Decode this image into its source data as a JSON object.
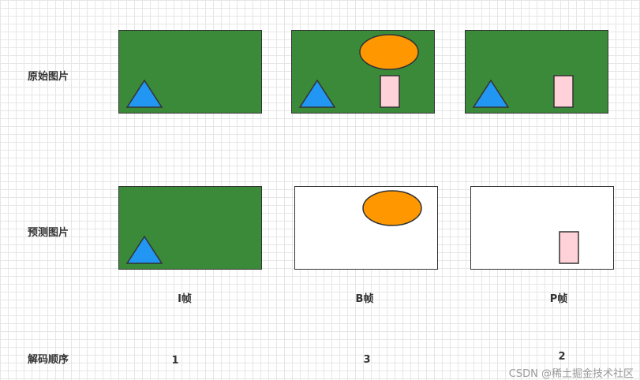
{
  "rows": {
    "original": "原始图片",
    "predicted": "预测图片",
    "decode_order": "解码顺序"
  },
  "frames": {
    "i": {
      "label": "I帧",
      "order": "1"
    },
    "b": {
      "label": "B帧",
      "order": "3"
    },
    "p": {
      "label": "P帧",
      "order": "2"
    }
  },
  "colors": {
    "background_green": "#3a8a3a",
    "triangle_blue": "#2196f3",
    "ellipse_orange": "#ff9800",
    "rect_pink": "#ffd1d9",
    "outline": "#333333"
  },
  "watermark": "CSDN @稀土掘金技术社区"
}
